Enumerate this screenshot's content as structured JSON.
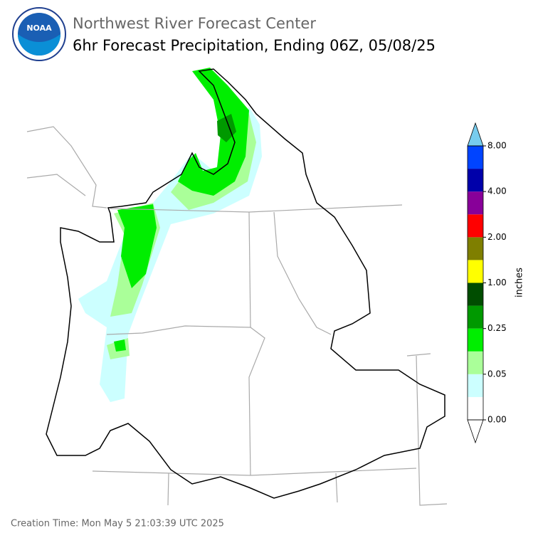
{
  "header": {
    "title": "Northwest River Forecast Center",
    "subtitle": "6hr Forecast Precipitation, Ending 06Z, 05/08/25"
  },
  "colorbar": {
    "label": "inches",
    "ticks": [
      "0.00",
      "0.05",
      "0.25",
      "1.00",
      "2.00",
      "4.00",
      "8.00"
    ],
    "colors": [
      "#ffffff",
      "#ccffff",
      "#aaff99",
      "#00ee00",
      "#009900",
      "#004d00",
      "#ffff00",
      "#7f7f00",
      "#ff0000",
      "#880099",
      "#0000aa",
      "#0044ff"
    ],
    "under_color": "#ffffff",
    "over_color": "#77ccee"
  },
  "footer": {
    "creation_time": "Creation Time: Mon May 5 21:03:39 UTC 2025"
  }
}
